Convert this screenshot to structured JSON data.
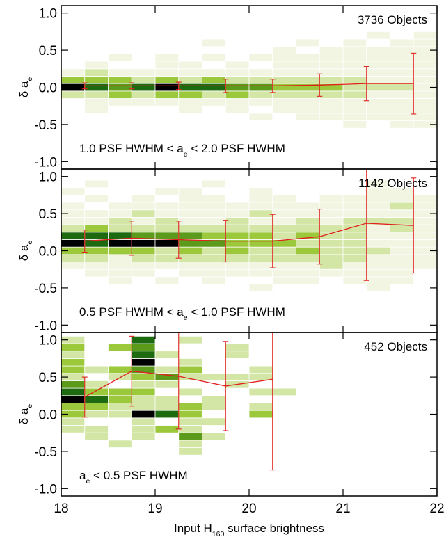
{
  "chart_data": [
    {
      "type": "heatmap",
      "annotation": "3736 Objects",
      "range_label": [
        "1.0 PSF HWHM < a",
        "e",
        " < 2.0 PSF HWHM"
      ],
      "ylabel": [
        "δ a",
        "e"
      ],
      "xlim": [
        18,
        22
      ],
      "ylim": [
        -1.1,
        1.1
      ],
      "xticks": [
        18,
        19,
        20,
        21,
        22
      ],
      "yticks": [
        {
          "value": -1,
          "label": "-1.0"
        },
        {
          "value": -0.5,
          "label": "-0.5"
        },
        {
          "value": 0,
          "label": "0.0"
        },
        {
          "value": 0.5,
          "label": "0.5"
        },
        {
          "value": 1,
          "label": "1.0"
        }
      ],
      "palette": [
        "none",
        "#f1f5e2",
        "#d3e6a6",
        "#9cc83c",
        "#5c9a1c",
        "#1d6a10",
        "#000000"
      ],
      "heatmap": {
        "x0": 18,
        "dx": 0.25,
        "y0": -0.55,
        "dy": 0.1,
        "levels": [
          [
            0,
            0,
            0,
            0,
            0,
            0,
            0,
            0,
            0,
            0,
            0,
            0,
            1,
            0,
            1,
            1
          ],
          [
            0,
            0,
            0,
            0,
            0,
            0,
            0,
            0,
            1,
            0,
            1,
            1,
            1,
            1,
            1,
            1
          ],
          [
            0,
            1,
            0,
            0,
            0,
            1,
            0,
            1,
            0,
            1,
            1,
            1,
            1,
            1,
            1,
            1
          ],
          [
            0,
            1,
            1,
            1,
            1,
            1,
            1,
            1,
            1,
            1,
            1,
            1,
            1,
            1,
            1,
            1
          ],
          [
            2,
            2,
            3,
            2,
            3,
            3,
            2,
            3,
            2,
            2,
            2,
            2,
            2,
            1,
            1,
            1
          ],
          [
            6,
            5,
            4,
            5,
            6,
            5,
            5,
            4,
            4,
            3,
            3,
            3,
            2,
            2,
            2,
            1
          ],
          [
            3,
            3,
            3,
            2,
            3,
            2,
            3,
            2,
            2,
            2,
            2,
            2,
            2,
            1,
            1,
            1
          ],
          [
            1,
            2,
            1,
            1,
            1,
            1,
            1,
            1,
            1,
            1,
            1,
            1,
            1,
            1,
            1,
            1
          ],
          [
            0,
            1,
            0,
            0,
            1,
            1,
            0,
            1,
            0,
            1,
            1,
            1,
            1,
            1,
            1,
            1
          ],
          [
            0,
            0,
            1,
            0,
            1,
            0,
            1,
            0,
            1,
            1,
            1,
            1,
            1,
            1,
            1,
            1
          ],
          [
            0,
            0,
            0,
            0,
            0,
            0,
            0,
            0,
            0,
            1,
            0,
            1,
            1,
            1,
            1,
            1
          ],
          [
            0,
            0,
            0,
            0,
            0,
            0,
            1,
            0,
            0,
            0,
            1,
            0,
            1,
            0,
            1,
            1
          ],
          [
            0,
            0,
            0,
            0,
            0,
            0,
            0,
            0,
            0,
            0,
            0,
            0,
            0,
            1,
            0,
            1
          ]
        ]
      },
      "series": [
        {
          "color": "#e0201a",
          "x": [
            18.25,
            18.75,
            19.25,
            19.75,
            20.25,
            20.75,
            21.25,
            21.75
          ],
          "values": [
            0.02,
            0.02,
            0.02,
            0.02,
            0.02,
            0.03,
            0.05,
            0.05
          ],
          "errors": [
            0.04,
            0.04,
            0.05,
            0.09,
            0.09,
            0.15,
            0.23,
            0.41
          ]
        }
      ]
    },
    {
      "type": "heatmap",
      "annotation": "1142 Objects",
      "range_label": [
        "0.5 PSF HWHM < a",
        "e",
        " < 1.0 PSF HWHM"
      ],
      "ylabel": [
        "δ a",
        "e"
      ],
      "xlim": [
        18,
        22
      ],
      "ylim": [
        -1.1,
        1.1
      ],
      "xticks": [
        18,
        19,
        20,
        21,
        22
      ],
      "yticks": [
        {
          "value": -1,
          "label": "-1.0"
        },
        {
          "value": -0.5,
          "label": "-0.5"
        },
        {
          "value": 0,
          "label": "0.0"
        },
        {
          "value": 0.5,
          "label": "0.5"
        },
        {
          "value": 1,
          "label": "1.0"
        }
      ],
      "palette": [
        "none",
        "#f1f5e2",
        "#d3e6a6",
        "#9cc83c",
        "#5c9a1c",
        "#1d6a10",
        "#000000"
      ],
      "heatmap": {
        "x0": 18,
        "dx": 0.25,
        "y0": -0.55,
        "dy": 0.1,
        "levels": [
          [
            0,
            0,
            0,
            0,
            0,
            0,
            0,
            0,
            1,
            0,
            0,
            0,
            0,
            1,
            0,
            0
          ],
          [
            0,
            0,
            1,
            0,
            1,
            0,
            1,
            0,
            0,
            1,
            1,
            0,
            1,
            1,
            1,
            0
          ],
          [
            0,
            1,
            1,
            1,
            0,
            1,
            1,
            1,
            1,
            1,
            1,
            1,
            1,
            1,
            1,
            0
          ],
          [
            1,
            1,
            1,
            1,
            1,
            1,
            1,
            1,
            1,
            1,
            1,
            2,
            1,
            1,
            1,
            1
          ],
          [
            2,
            2,
            1,
            2,
            2,
            2,
            2,
            2,
            2,
            2,
            2,
            2,
            2,
            1,
            1,
            1
          ],
          [
            3,
            3,
            3,
            3,
            2,
            3,
            2,
            3,
            2,
            2,
            3,
            2,
            2,
            2,
            1,
            1
          ],
          [
            6,
            5,
            6,
            6,
            6,
            4,
            4,
            3,
            3,
            3,
            2,
            2,
            2,
            1,
            1,
            1
          ],
          [
            5,
            5,
            5,
            4,
            4,
            4,
            3,
            3,
            3,
            2,
            3,
            2,
            2,
            1,
            1,
            1
          ],
          [
            2,
            3,
            2,
            2,
            2,
            2,
            2,
            2,
            2,
            2,
            2,
            2,
            2,
            1,
            2,
            1
          ],
          [
            1,
            1,
            2,
            1,
            2,
            1,
            1,
            2,
            1,
            1,
            2,
            1,
            2,
            2,
            2,
            1
          ],
          [
            1,
            1,
            1,
            2,
            1,
            1,
            1,
            1,
            2,
            1,
            1,
            1,
            1,
            1,
            1,
            1
          ],
          [
            1,
            0,
            1,
            1,
            1,
            1,
            1,
            1,
            1,
            1,
            1,
            1,
            1,
            1,
            2,
            1
          ],
          [
            0,
            1,
            0,
            1,
            0,
            1,
            1,
            0,
            1,
            1,
            0,
            1,
            1,
            1,
            1,
            1
          ],
          [
            1,
            0,
            0,
            0,
            1,
            1,
            0,
            0,
            1,
            0,
            0,
            0,
            0,
            1,
            1,
            0
          ],
          [
            0,
            1,
            0,
            0,
            0,
            0,
            1,
            0,
            0,
            0,
            0,
            0,
            0,
            1,
            0,
            0
          ]
        ]
      },
      "series": [
        {
          "color": "#e0201a",
          "x": [
            18.25,
            18.75,
            19.25,
            19.75,
            20.25,
            20.75,
            21.25,
            21.75
          ],
          "values": [
            0.13,
            0.17,
            0.15,
            0.13,
            0.13,
            0.19,
            0.37,
            0.34
          ],
          "errors": [
            0.15,
            0.23,
            0.25,
            0.28,
            0.36,
            0.37,
            0.77,
            0.64
          ]
        }
      ]
    },
    {
      "type": "heatmap",
      "annotation": "452 Objects",
      "range_label": [
        "a",
        "e",
        " < 0.5 PSF HWHM"
      ],
      "ylabel": [
        "δ a",
        "e"
      ],
      "xlabel": [
        "Input H",
        "160",
        " surface brightness"
      ],
      "xlim": [
        18,
        22
      ],
      "ylim": [
        -1.1,
        1.1
      ],
      "xticks": [
        18,
        19,
        20,
        21,
        22
      ],
      "yticks": [
        {
          "value": -1,
          "label": "-1.0"
        },
        {
          "value": -0.5,
          "label": "-0.5"
        },
        {
          "value": 0,
          "label": "0.0"
        },
        {
          "value": 0.5,
          "label": "0.5"
        },
        {
          "value": 1,
          "label": "1.0"
        }
      ],
      "palette": [
        "none",
        "#f1f5e2",
        "#d3e6a6",
        "#9cc83c",
        "#5c9a1c",
        "#1d6a10",
        "#000000"
      ],
      "heatmap": {
        "x0": 18,
        "dx": 0.25,
        "y0": -0.55,
        "dy": 0.1,
        "levels": [
          [
            0,
            0,
            0,
            0,
            0,
            2,
            0,
            0,
            0,
            0
          ],
          [
            0,
            0,
            2,
            0,
            0,
            2,
            0,
            0,
            0,
            0
          ],
          [
            0,
            2,
            0,
            2,
            0,
            4,
            2,
            0,
            0,
            0
          ],
          [
            2,
            2,
            0,
            2,
            3,
            2,
            0,
            0,
            0,
            0
          ],
          [
            2,
            0,
            0,
            2,
            0,
            2,
            2,
            0,
            0,
            0
          ],
          [
            3,
            2,
            2,
            6,
            5,
            3,
            0,
            0,
            3,
            0
          ],
          [
            3,
            3,
            2,
            2,
            2,
            3,
            2,
            0,
            2,
            0
          ],
          [
            6,
            5,
            3,
            2,
            2,
            0,
            2,
            0,
            0,
            0
          ],
          [
            5,
            3,
            3,
            3,
            0,
            2,
            0,
            0,
            2,
            2
          ],
          [
            4,
            2,
            0,
            2,
            2,
            0,
            0,
            2,
            0,
            0
          ],
          [
            2,
            0,
            2,
            3,
            4,
            2,
            2,
            2,
            2,
            0
          ],
          [
            3,
            2,
            3,
            4,
            2,
            3,
            0,
            0,
            2,
            0
          ],
          [
            3,
            0,
            0,
            6,
            0,
            2,
            0,
            0,
            0,
            0
          ],
          [
            2,
            0,
            0,
            5,
            2,
            0,
            0,
            2,
            0,
            0
          ],
          [
            3,
            0,
            3,
            4,
            0,
            0,
            0,
            2,
            0,
            0
          ],
          [
            2,
            0,
            0,
            5,
            0,
            2,
            0,
            0,
            0,
            0
          ]
        ]
      },
      "series": [
        {
          "color": "#e0201a",
          "x": [
            18.25,
            18.75,
            19.25,
            19.75,
            20.25
          ],
          "values": [
            0.23,
            0.58,
            0.51,
            0.38,
            0.47
          ],
          "errors": [
            0.27,
            0.47,
            0.71,
            0.6,
            1.22
          ]
        }
      ]
    }
  ]
}
